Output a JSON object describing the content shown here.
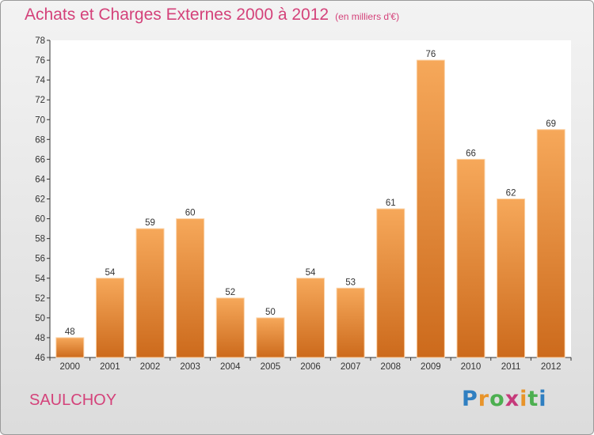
{
  "title": "Achats et Charges Externes 2000 à 2012",
  "subtitle": "(en milliers d'€)",
  "town": "SAULCHOY",
  "logo": {
    "letters": [
      "P",
      "r",
      "o",
      "x",
      "i",
      "t",
      "i"
    ]
  },
  "colors": {
    "title": "#d4427a",
    "bar_top": "#f6a85a",
    "bar_bottom": "#cc6a1c",
    "axis": "#333333"
  },
  "chart_data": {
    "type": "bar",
    "categories": [
      "2000",
      "2001",
      "2002",
      "2003",
      "2004",
      "2005",
      "2006",
      "2007",
      "2008",
      "2009",
      "2010",
      "2011",
      "2012"
    ],
    "values": [
      48,
      54,
      59,
      60,
      52,
      50,
      54,
      53,
      61,
      76,
      66,
      62,
      69
    ],
    "title": "Achats et Charges Externes 2000 à 2012",
    "subtitle": "(en milliers d'€)",
    "xlabel": "",
    "ylabel": "",
    "ylim": [
      46,
      78
    ],
    "yticks": [
      46,
      48,
      50,
      52,
      54,
      56,
      58,
      60,
      62,
      64,
      66,
      68,
      70,
      72,
      74,
      76,
      78
    ],
    "grid": false,
    "data_labels": true
  }
}
